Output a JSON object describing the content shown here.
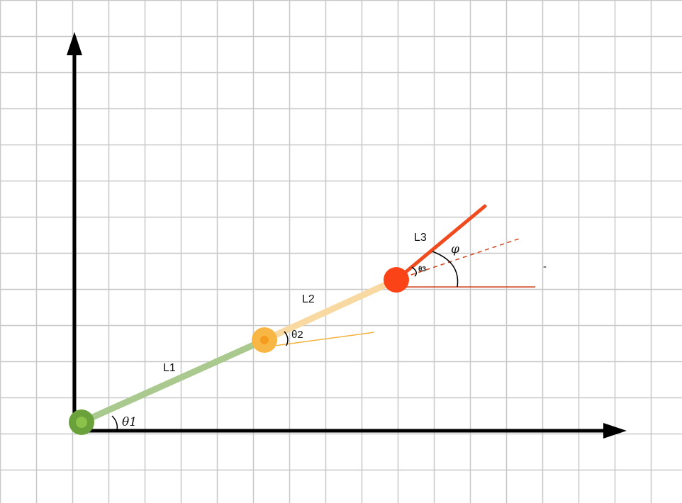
{
  "labels": {
    "theta1": "θ1",
    "theta2": "θ2",
    "theta3": "θ3",
    "phi": "φ",
    "link1": "L1",
    "link2": "L2",
    "link3": "L3",
    "dash_mark": "-"
  },
  "colors": {
    "grid": "#c8c8c8",
    "axis": "#000000",
    "link1": "#a9c98f",
    "link2": "#f9d9a2",
    "link3": "#f04a1f",
    "joint1_outer": "#6aa13a",
    "joint1_inner": "#8bc34a",
    "joint2_outer": "#f8b744",
    "joint2_inner": "#f49c1e",
    "joint3": "#fa4418",
    "ref_line_joint2": "#f3b23c",
    "ref_line_joint3": "#d0401a"
  }
}
